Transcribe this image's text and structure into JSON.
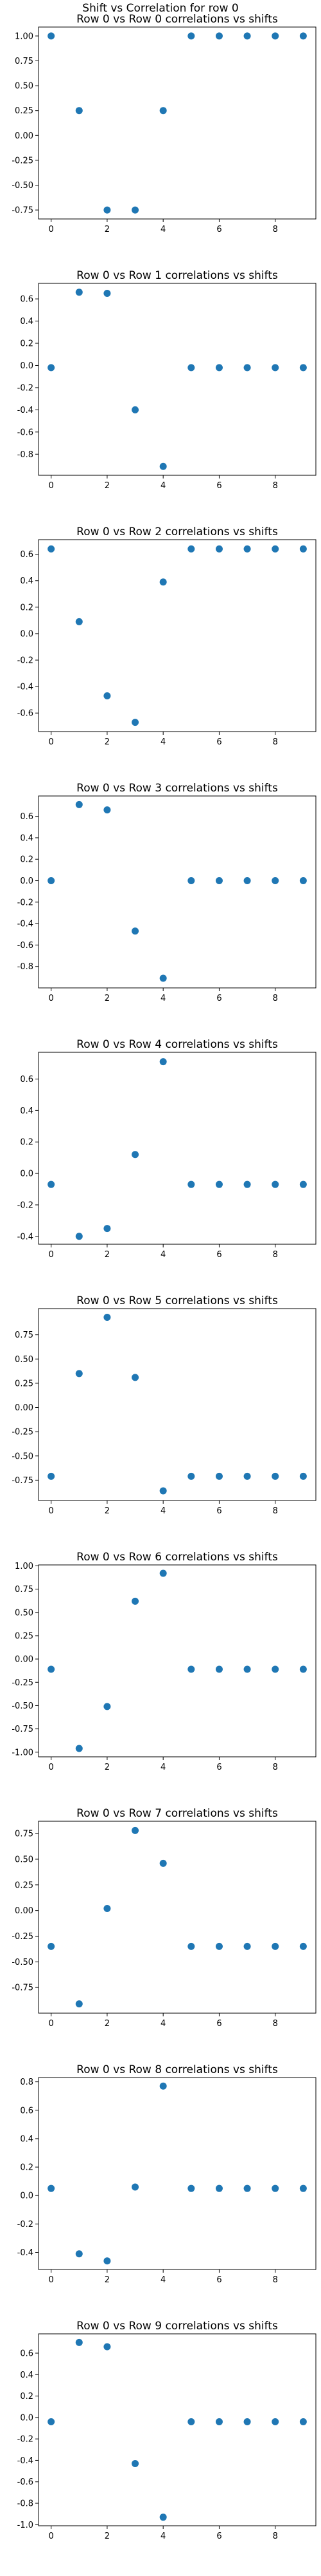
{
  "figure": {
    "title": "Shift vs Correlation for row 0",
    "point_color": "#1f77b4"
  },
  "chart_data": [
    {
      "type": "scatter",
      "title": "Row 0 vs Row 0 correlations vs shifts",
      "xlabel": "",
      "ylabel": "",
      "x": [
        0,
        1,
        2,
        3,
        4,
        5,
        6,
        7,
        8,
        9
      ],
      "y": [
        1.0,
        0.25,
        -0.75,
        -0.75,
        0.25,
        1.0,
        1.0,
        1.0,
        1.0,
        1.0
      ],
      "xlim": [
        -0.45,
        9.45
      ],
      "ylim": [
        -0.84,
        1.09
      ],
      "xticks": [
        0,
        2,
        4,
        6,
        8
      ],
      "yticks": [
        1.0,
        0.75,
        0.5,
        0.25,
        0.0,
        -0.25,
        -0.5,
        -0.75
      ],
      "ytick_labels": [
        "1.00",
        "0.75",
        "0.50",
        "0.25",
        "0.00",
        "-0.25",
        "-0.50",
        "-0.75"
      ]
    },
    {
      "type": "scatter",
      "title": "Row 0 vs Row 1 correlations vs shifts",
      "xlabel": "",
      "ylabel": "",
      "x": [
        0,
        1,
        2,
        3,
        4,
        5,
        6,
        7,
        8,
        9
      ],
      "y": [
        -0.02,
        0.66,
        0.65,
        -0.4,
        -0.91,
        -0.02,
        -0.02,
        -0.02,
        -0.02,
        -0.02
      ],
      "xlim": [
        -0.45,
        9.45
      ],
      "ylim": [
        -0.99,
        0.74
      ],
      "xticks": [
        0,
        2,
        4,
        6,
        8
      ],
      "yticks": [
        0.6,
        0.4,
        0.2,
        0.0,
        -0.2,
        -0.4,
        -0.6,
        -0.8
      ],
      "ytick_labels": [
        "0.6",
        "0.4",
        "0.2",
        "0.0",
        "-0.2",
        "-0.4",
        "-0.6",
        "-0.8"
      ]
    },
    {
      "type": "scatter",
      "title": "Row 0 vs Row 2 correlations vs shifts",
      "xlabel": "",
      "ylabel": "",
      "x": [
        0,
        1,
        2,
        3,
        4,
        5,
        6,
        7,
        8,
        9
      ],
      "y": [
        0.64,
        0.09,
        -0.47,
        -0.67,
        0.39,
        0.64,
        0.64,
        0.64,
        0.64,
        0.64
      ],
      "xlim": [
        -0.45,
        9.45
      ],
      "ylim": [
        -0.74,
        0.71
      ],
      "xticks": [
        0,
        2,
        4,
        6,
        8
      ],
      "yticks": [
        0.6,
        0.4,
        0.2,
        0.0,
        -0.2,
        -0.4,
        -0.6
      ],
      "ytick_labels": [
        "0.6",
        "0.4",
        "0.2",
        "0.0",
        "-0.2",
        "-0.4",
        "-0.6"
      ]
    },
    {
      "type": "scatter",
      "title": "Row 0 vs Row 3 correlations vs shifts",
      "xlabel": "",
      "ylabel": "",
      "x": [
        0,
        1,
        2,
        3,
        4,
        5,
        6,
        7,
        8,
        9
      ],
      "y": [
        0.0,
        0.71,
        0.66,
        -0.47,
        -0.91,
        0.0,
        0.0,
        0.0,
        0.0,
        0.0
      ],
      "xlim": [
        -0.45,
        9.45
      ],
      "ylim": [
        -1.0,
        0.79
      ],
      "xticks": [
        0,
        2,
        4,
        6,
        8
      ],
      "yticks": [
        0.6,
        0.4,
        0.2,
        0.0,
        -0.2,
        -0.4,
        -0.6,
        -0.8
      ],
      "ytick_labels": [
        "0.6",
        "0.4",
        "0.2",
        "0.0",
        "-0.2",
        "-0.4",
        "-0.6",
        "-0.8"
      ]
    },
    {
      "type": "scatter",
      "title": "Row 0 vs Row 4 correlations vs shifts",
      "xlabel": "",
      "ylabel": "",
      "x": [
        0,
        1,
        2,
        3,
        4,
        5,
        6,
        7,
        8,
        9
      ],
      "y": [
        -0.07,
        -0.4,
        -0.35,
        0.12,
        0.71,
        -0.07,
        -0.07,
        -0.07,
        -0.07,
        -0.07
      ],
      "xlim": [
        -0.45,
        9.45
      ],
      "ylim": [
        -0.45,
        0.77
      ],
      "xticks": [
        0,
        2,
        4,
        6,
        8
      ],
      "yticks": [
        0.6,
        0.4,
        0.2,
        0.0,
        -0.2,
        -0.4
      ],
      "ytick_labels": [
        "0.6",
        "0.4",
        "0.2",
        "0.0",
        "-0.2",
        "-0.4"
      ]
    },
    {
      "type": "scatter",
      "title": "Row 0 vs Row 5 correlations vs shifts",
      "xlabel": "",
      "ylabel": "",
      "x": [
        0,
        1,
        2,
        3,
        4,
        5,
        6,
        7,
        8,
        9
      ],
      "y": [
        -0.71,
        0.35,
        0.93,
        0.31,
        -0.86,
        -0.71,
        -0.71,
        -0.71,
        -0.71,
        -0.71
      ],
      "xlim": [
        -0.45,
        9.45
      ],
      "ylim": [
        -0.96,
        1.02
      ],
      "xticks": [
        0,
        2,
        4,
        6,
        8
      ],
      "yticks": [
        0.75,
        0.5,
        0.25,
        0.0,
        -0.25,
        -0.5,
        -0.75
      ],
      "ytick_labels": [
        "0.75",
        "0.50",
        "0.25",
        "0.00",
        "-0.25",
        "-0.50",
        "-0.75"
      ]
    },
    {
      "type": "scatter",
      "title": "Row 0 vs Row 6 correlations vs shifts",
      "xlabel": "",
      "ylabel": "",
      "x": [
        0,
        1,
        2,
        3,
        4,
        5,
        6,
        7,
        8,
        9
      ],
      "y": [
        -0.11,
        -0.96,
        -0.51,
        0.62,
        0.92,
        -0.11,
        -0.11,
        -0.11,
        -0.11,
        -0.11
      ],
      "xlim": [
        -0.45,
        9.45
      ],
      "ylim": [
        -1.05,
        1.01
      ],
      "xticks": [
        0,
        2,
        4,
        6,
        8
      ],
      "yticks": [
        1.0,
        0.75,
        0.5,
        0.25,
        0.0,
        -0.25,
        -0.5,
        -0.75,
        -1.0
      ],
      "ytick_labels": [
        "1.00",
        "0.75",
        "0.50",
        "0.25",
        "0.00",
        "-0.25",
        "-0.50",
        "-0.75",
        "-1.00"
      ]
    },
    {
      "type": "scatter",
      "title": "Row 0 vs Row 7 correlations vs shifts",
      "xlabel": "",
      "ylabel": "",
      "x": [
        0,
        1,
        2,
        3,
        4,
        5,
        6,
        7,
        8,
        9
      ],
      "y": [
        -0.35,
        -0.91,
        0.02,
        0.78,
        0.46,
        -0.35,
        -0.35,
        -0.35,
        -0.35,
        -0.35
      ],
      "xlim": [
        -0.45,
        9.45
      ],
      "ylim": [
        -1.0,
        0.87
      ],
      "xticks": [
        0,
        2,
        4,
        6,
        8
      ],
      "yticks": [
        0.75,
        0.5,
        0.25,
        0.0,
        -0.25,
        -0.5,
        -0.75
      ],
      "ytick_labels": [
        "0.75",
        "0.50",
        "0.25",
        "0.00",
        "-0.25",
        "-0.50",
        "-0.75"
      ]
    },
    {
      "type": "scatter",
      "title": "Row 0 vs Row 8 correlations vs shifts",
      "xlabel": "",
      "ylabel": "",
      "x": [
        0,
        1,
        2,
        3,
        4,
        5,
        6,
        7,
        8,
        9
      ],
      "y": [
        0.05,
        -0.41,
        -0.46,
        0.06,
        0.77,
        0.05,
        0.05,
        0.05,
        0.05,
        0.05
      ],
      "xlim": [
        -0.45,
        9.45
      ],
      "ylim": [
        -0.52,
        0.83
      ],
      "xticks": [
        0,
        2,
        4,
        6,
        8
      ],
      "yticks": [
        0.8,
        0.6,
        0.4,
        0.2,
        0.0,
        -0.2,
        -0.4
      ],
      "ytick_labels": [
        "0.8",
        "0.6",
        "0.4",
        "0.2",
        "0.0",
        "-0.2",
        "-0.4"
      ]
    },
    {
      "type": "scatter",
      "title": "Row 0 vs Row 9 correlations vs shifts",
      "xlabel": "",
      "ylabel": "",
      "x": [
        0,
        1,
        2,
        3,
        4,
        5,
        6,
        7,
        8,
        9
      ],
      "y": [
        -0.04,
        0.7,
        0.66,
        -0.43,
        -0.93,
        -0.04,
        -0.04,
        -0.04,
        -0.04,
        -0.04
      ],
      "xlim": [
        -0.45,
        9.45
      ],
      "ylim": [
        -1.01,
        0.78
      ],
      "xticks": [
        0,
        2,
        4,
        6,
        8
      ],
      "yticks": [
        0.6,
        0.4,
        0.2,
        0.0,
        -0.2,
        -0.4,
        -0.6,
        -0.8,
        -1.0
      ],
      "ytick_labels": [
        "0.6",
        "0.4",
        "0.2",
        "0.0",
        "-0.2",
        "-0.4",
        "-0.6",
        "-0.8",
        "-1.0"
      ]
    }
  ]
}
